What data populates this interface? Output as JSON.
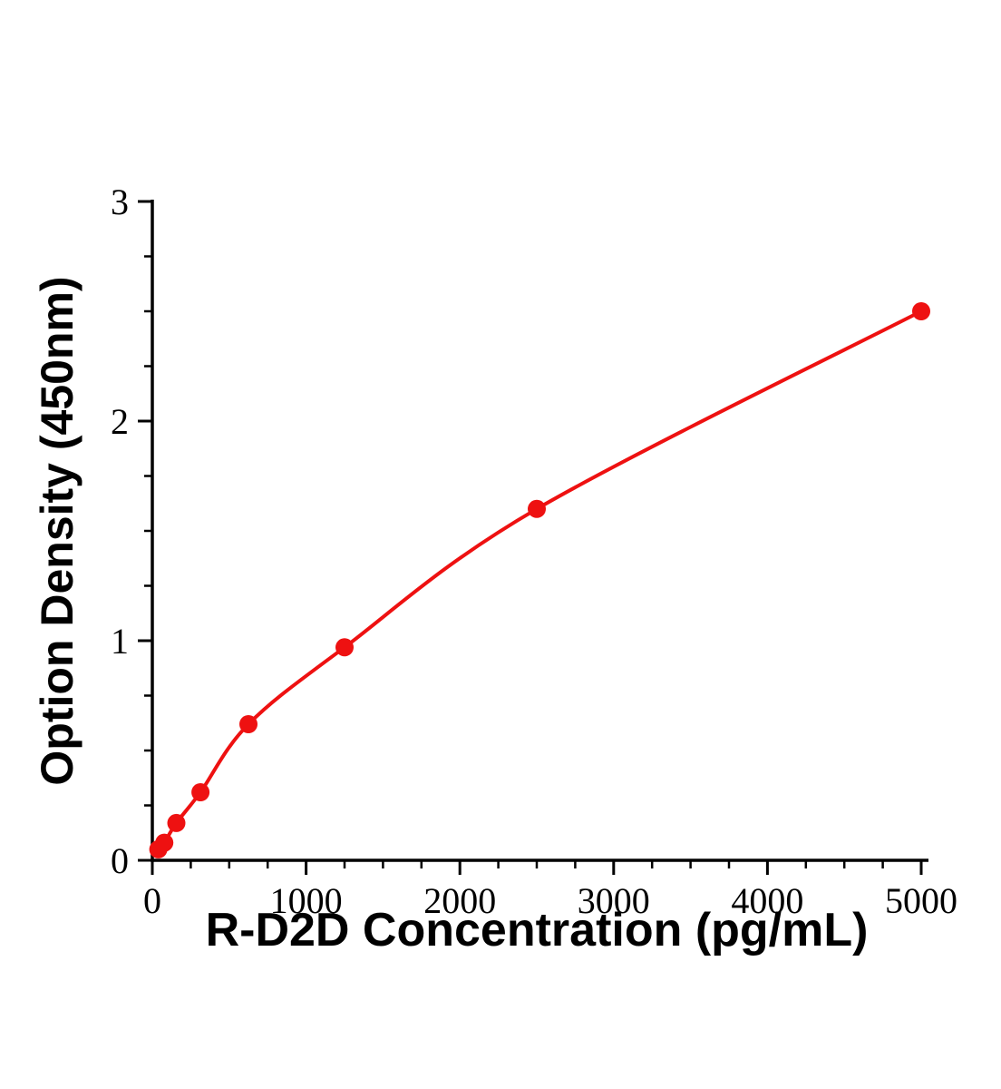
{
  "figure": {
    "background_color": "#ffffff"
  },
  "chart_data": {
    "type": "line",
    "markers": true,
    "title": "",
    "xlabel": "R-D2D Concentration (pg/mL)",
    "ylabel": "Option Density (450nm)",
    "x": [
      39,
      78,
      156,
      313,
      625,
      1250,
      2500,
      5000
    ],
    "y": [
      0.05,
      0.08,
      0.17,
      0.31,
      0.62,
      0.97,
      1.6,
      2.5
    ],
    "xlim": [
      0,
      5000
    ],
    "ylim": [
      0,
      3
    ],
    "x_ticks": [
      0,
      1000,
      2000,
      3000,
      4000,
      5000
    ],
    "x_tick_labels": [
      "0",
      "1000",
      "2000",
      "3000",
      "4000",
      "5000"
    ],
    "y_ticks": [
      0,
      1,
      2,
      3
    ],
    "y_tick_labels": [
      "0",
      "1",
      "2",
      "3"
    ],
    "x_minor_step": 250,
    "y_minor_step": 0.25,
    "grid": false,
    "legend": null,
    "line_color": "#ee1111",
    "marker_color": "#ee1111",
    "axis_color": "#000000"
  }
}
